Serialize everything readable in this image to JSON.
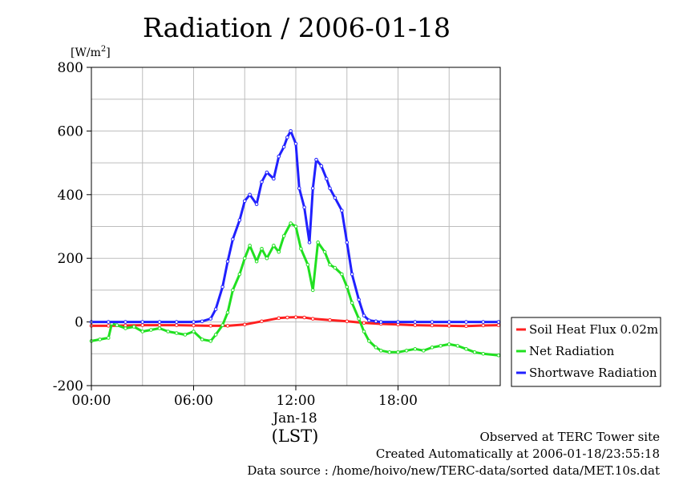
{
  "chart_data": {
    "type": "line",
    "title": "Radiation / 2006-01-18",
    "ylabel": "[W/m²]",
    "ylabel_base": "[W/m",
    "ylabel_sup": "2",
    "ylabel_close": "]",
    "xlabel": "(LST)",
    "x_date_label": "Jan-18",
    "xlim": [
      "00:00",
      "24:00"
    ],
    "ylim": [
      -200,
      800
    ],
    "y_major_ticks": [
      -200,
      0,
      200,
      400,
      600,
      800
    ],
    "y_major_labels": [
      "-200",
      "0",
      "200",
      "400",
      "600",
      "800"
    ],
    "y_grid_step": 100,
    "x_ticks": [
      "00:00",
      "06:00",
      "12:00",
      "18:00"
    ],
    "x_grid_hours": [
      3,
      6,
      9,
      12,
      15,
      18,
      21
    ],
    "grid": true,
    "legend_position": "right",
    "series": [
      {
        "name": "Soil Heat Flux 0.02m",
        "color": "#ff2020",
        "x": [
          0,
          1,
          2,
          3,
          4,
          5,
          6,
          7,
          8,
          9,
          10,
          11,
          11.5,
          12,
          12.5,
          13,
          14,
          15,
          16,
          17,
          18,
          19,
          20,
          21,
          22,
          23,
          23.9
        ],
        "y": [
          -12,
          -12,
          -11,
          -10,
          -10,
          -10,
          -11,
          -12,
          -12,
          -8,
          2,
          12,
          14,
          15,
          14,
          10,
          6,
          2,
          -3,
          -6,
          -8,
          -10,
          -11,
          -12,
          -13,
          -11,
          -10
        ]
      },
      {
        "name": "Net Radiation",
        "color": "#20e020",
        "x": [
          0,
          0.5,
          1,
          1.2,
          1.5,
          2,
          2.5,
          3,
          3.5,
          4,
          4.5,
          5,
          5.5,
          6,
          6.5,
          7,
          7.3,
          7.7,
          8,
          8.3,
          8.7,
          9,
          9.3,
          9.7,
          10,
          10.3,
          10.7,
          11,
          11.3,
          11.7,
          12,
          12.3,
          12.7,
          13,
          13.3,
          13.7,
          14,
          14.3,
          14.7,
          15,
          15.3,
          15.7,
          16,
          16.3,
          16.7,
          17,
          17.5,
          18,
          18.5,
          19,
          19.5,
          20,
          20.5,
          21,
          21.5,
          22,
          22.5,
          23,
          23.9
        ],
        "y": [
          -60,
          -55,
          -50,
          -5,
          -10,
          -20,
          -15,
          -30,
          -25,
          -20,
          -30,
          -35,
          -40,
          -30,
          -55,
          -60,
          -40,
          -10,
          30,
          100,
          150,
          200,
          240,
          190,
          230,
          200,
          240,
          220,
          270,
          310,
          300,
          230,
          180,
          100,
          250,
          220,
          180,
          170,
          150,
          110,
          60,
          10,
          -30,
          -60,
          -80,
          -90,
          -95,
          -95,
          -90,
          -85,
          -90,
          -80,
          -75,
          -70,
          -75,
          -85,
          -95,
          -100,
          -105
        ]
      },
      {
        "name": "Shortwave Radiation",
        "color": "#2020ff",
        "x": [
          0,
          1,
          2,
          3,
          4,
          5,
          6,
          6.5,
          7,
          7.3,
          7.7,
          8,
          8.3,
          8.7,
          9,
          9.3,
          9.7,
          10,
          10.3,
          10.7,
          11,
          11.3,
          11.5,
          11.7,
          12,
          12.2,
          12.5,
          12.8,
          13,
          13.2,
          13.5,
          13.8,
          14,
          14.3,
          14.7,
          15,
          15.3,
          15.7,
          16,
          16.3,
          16.7,
          17,
          18,
          19,
          20,
          21,
          22,
          23,
          23.9
        ],
        "y": [
          0,
          0,
          0,
          0,
          0,
          0,
          0,
          2,
          10,
          40,
          110,
          190,
          260,
          320,
          380,
          400,
          370,
          440,
          470,
          450,
          520,
          550,
          580,
          600,
          560,
          420,
          360,
          250,
          420,
          510,
          490,
          450,
          420,
          390,
          350,
          250,
          150,
          70,
          20,
          5,
          2,
          0,
          0,
          0,
          0,
          0,
          0,
          0,
          0
        ]
      }
    ]
  },
  "footer": {
    "line1": "Observed at TERC Tower site",
    "line2": "Created Automatically at 2006-01-18/23:55:18",
    "line3": "Data source : /home/hoivo/new/TERC-data/sorted  data/MET.10s.dat"
  }
}
